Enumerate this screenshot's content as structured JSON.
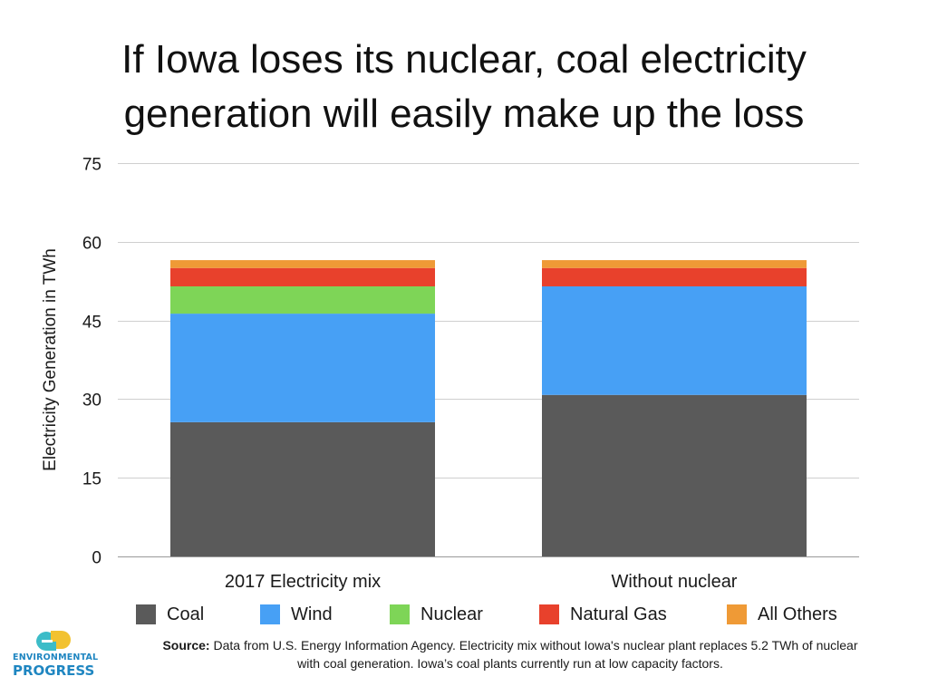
{
  "title_lines": [
    "If Iowa loses its nuclear, coal electricity",
    "generation will easily make up the loss"
  ],
  "chart_data": {
    "type": "bar",
    "stacked": true,
    "categories": [
      "2017 Electricity mix",
      "Without nuclear"
    ],
    "series": [
      {
        "name": "Coal",
        "color": "#5a5a5a",
        "values": [
          25.6,
          30.8
        ]
      },
      {
        "name": "Wind",
        "color": "#47a0f5",
        "values": [
          20.7,
          20.7
        ]
      },
      {
        "name": "Nuclear",
        "color": "#7ed557",
        "values": [
          5.2,
          0
        ]
      },
      {
        "name": "Natural Gas",
        "color": "#e8412c",
        "values": [
          3.5,
          3.5
        ]
      },
      {
        "name": "All Others",
        "color": "#ef9a36",
        "values": [
          1.5,
          1.5
        ]
      }
    ],
    "ylabel": "Electricity Generation in TWh",
    "xlabel": "",
    "ylim": [
      0,
      75
    ],
    "yticks": [
      "0",
      "15",
      "30",
      "45",
      "60",
      "75"
    ],
    "grid": true,
    "legend_position": "bottom"
  },
  "source": {
    "label": "Source:",
    "text_line1": "Data from U.S. Energy Information Agency. Electricity mix without Iowa's nuclear plant replaces 5.2 TWh of nuclear",
    "text_line2": "with coal generation. Iowa’s coal plants currently run at low capacity factors."
  },
  "logo": {
    "line1": "ENVIRONMENTAL",
    "line2": "PROGRESS",
    "colors": {
      "primary": "#1f86c1",
      "accent": "#f2c230",
      "teal": "#3cbcc8"
    }
  }
}
